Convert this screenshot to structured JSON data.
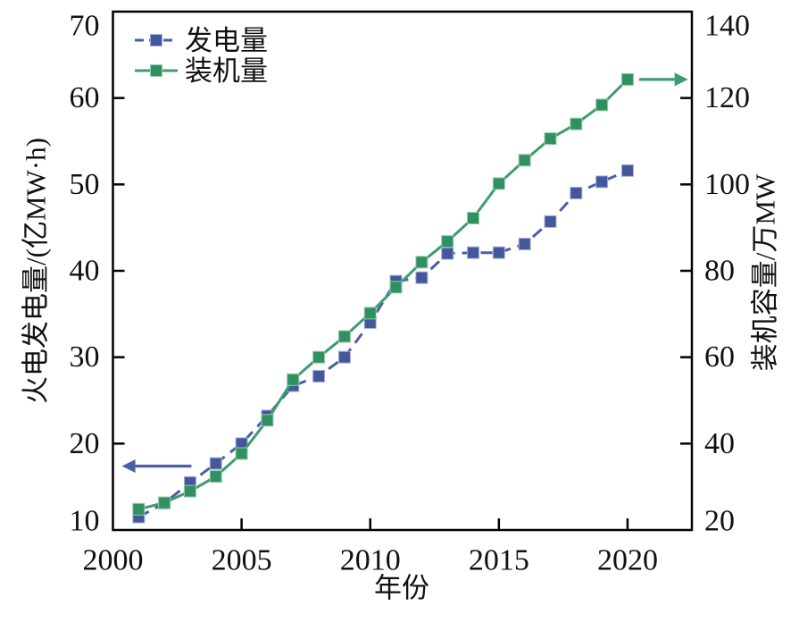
{
  "figure": {
    "background_color": "#ffffff",
    "text_color": "#111111",
    "axis_color": "#000000"
  },
  "chart_data": {
    "type": "line",
    "title": "",
    "xlabel": "年份",
    "ylabel_left": "火电发电量/(亿MW·h)",
    "ylabel_right": "装机容量/万MW",
    "xlim": [
      2000,
      2022.5
    ],
    "ylim_left": [
      10,
      70
    ],
    "ylim_right": [
      20,
      140
    ],
    "xticks": [
      2000,
      2005,
      2010,
      2015,
      2020
    ],
    "yticks_left": [
      10,
      20,
      30,
      40,
      50,
      60,
      70
    ],
    "yticks_right": [
      20,
      40,
      60,
      80,
      100,
      120,
      140
    ],
    "grid": false,
    "legend_position": "top-left-inside",
    "x": [
      2001,
      2002,
      2003,
      2004,
      2005,
      2006,
      2007,
      2008,
      2009,
      2010,
      2011,
      2012,
      2013,
      2014,
      2015,
      2016,
      2017,
      2018,
      2019,
      2020
    ],
    "series": [
      {
        "key": "generation",
        "name": "发电量",
        "axis": "left",
        "unit": "亿MW·h",
        "color": "#4a5fa5",
        "marker_color": "#44569c",
        "marker_edge": "#a6b1d8",
        "marker": "square",
        "line_style": "dashed",
        "values": [
          11.5,
          13.1,
          15.5,
          17.7,
          20.0,
          23.2,
          26.7,
          27.8,
          30.0,
          34.0,
          38.8,
          39.2,
          42.0,
          42.1,
          42.1,
          43.1,
          45.7,
          49.0,
          50.3,
          51.6
        ]
      },
      {
        "key": "capacity",
        "name": "装机量",
        "axis": "right",
        "unit": "万MW",
        "color": "#3f9c6f",
        "marker_color": "#309060",
        "marker_edge": "#96cbad",
        "marker": "square",
        "line_style": "solid",
        "values": [
          24.8,
          26.3,
          29.0,
          32.4,
          37.7,
          45.4,
          54.8,
          60.0,
          64.8,
          70.2,
          76.2,
          82.0,
          86.8,
          92.2,
          100.2,
          105.6,
          110.6,
          114.0,
          118.4,
          124.3
        ]
      }
    ],
    "annotations": [
      {
        "name": "left-axis-arrow",
        "series": "发电量",
        "axis": "left",
        "color": "#4a5fa5",
        "y_value": 17.4,
        "x_from_year": 2003.05,
        "x_to_year": 2000.35,
        "direction": "left"
      },
      {
        "name": "right-axis-arrow",
        "series": "装机量",
        "axis": "right",
        "color": "#3f9c6f",
        "y_value": 124.3,
        "x_from_year": 2020.45,
        "x_to_year": 2022.35,
        "direction": "right"
      }
    ]
  }
}
